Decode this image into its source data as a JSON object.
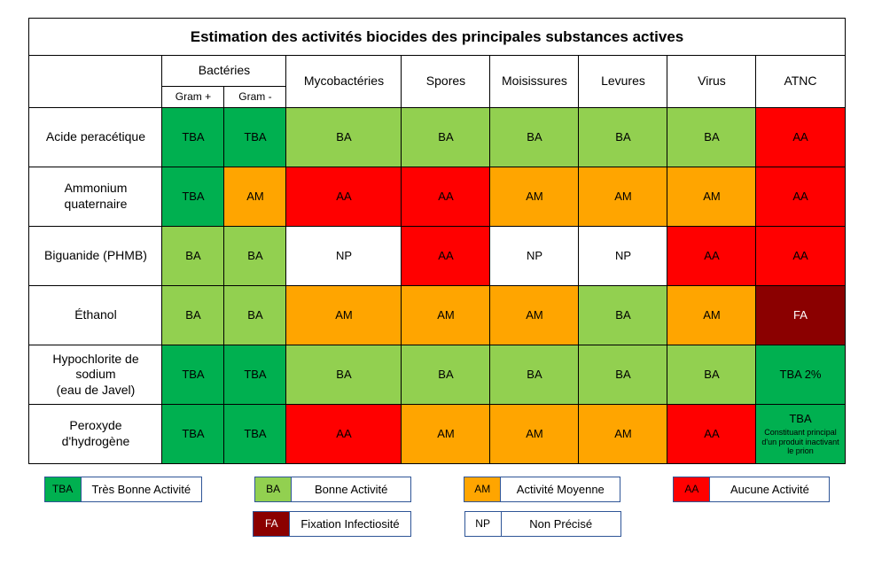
{
  "title": "Estimation des activités biocides des principales substances actives",
  "columns": {
    "bacteries": "Bactéries",
    "gram_plus": "Gram +",
    "gram_minus": "Gram -",
    "mycobacteries": "Mycobactéries",
    "spores": "Spores",
    "moisissures": "Moisissures",
    "levures": "Levures",
    "virus": "Virus",
    "atnc": "ATNC"
  },
  "codes": {
    "TBA": {
      "label": "TBA",
      "bg": "#00b050",
      "fg": "#000000"
    },
    "BA": {
      "label": "BA",
      "bg": "#92d050",
      "fg": "#000000"
    },
    "AM": {
      "label": "AM",
      "bg": "#ffa500",
      "fg": "#000000"
    },
    "AA": {
      "label": "AA",
      "bg": "#ff0000",
      "fg": "#000000"
    },
    "FA": {
      "label": "FA",
      "bg": "#8b0000",
      "fg": "#ffffff"
    },
    "NP": {
      "label": "NP",
      "bg": "#ffffff",
      "fg": "#000000"
    }
  },
  "rows": [
    {
      "name": "Acide peracétique",
      "cells": [
        "TBA",
        "TBA",
        "BA",
        "BA",
        "BA",
        "BA",
        "BA",
        "AA"
      ]
    },
    {
      "name": "Ammonium quaternaire",
      "cells": [
        "TBA",
        "AM",
        "AA",
        "AA",
        "AM",
        "AM",
        "AM",
        "AA"
      ]
    },
    {
      "name": "Biguanide (PHMB)",
      "cells": [
        "BA",
        "BA",
        "NP",
        "AA",
        "NP",
        "NP",
        "AA",
        "AA"
      ]
    },
    {
      "name": "Éthanol",
      "cells": [
        "BA",
        "BA",
        "AM",
        "AM",
        "AM",
        "BA",
        "AM",
        "FA"
      ]
    },
    {
      "name": "Hypochlorite de sodium (eau de Javel)",
      "name_html": "Hypochlorite de sodium<br>(eau de Javel)",
      "cells": [
        "TBA",
        "TBA",
        "BA",
        "BA",
        "BA",
        "BA",
        "BA",
        {
          "code": "TBA",
          "text": "TBA 2%"
        }
      ]
    },
    {
      "name": "Peroxyde d'hydrogène",
      "cells": [
        "TBA",
        "TBA",
        "AA",
        "AM",
        "AM",
        "AM",
        "AA",
        {
          "code": "TBA",
          "text": "TBA",
          "note": "Constituant principal d'un produit inactivant le prion"
        }
      ]
    }
  ],
  "legend": [
    {
      "code": "TBA",
      "text": "Très Bonne Activité"
    },
    {
      "code": "BA",
      "text": "Bonne Activité"
    },
    {
      "code": "AM",
      "text": "Activité Moyenne"
    },
    {
      "code": "AA",
      "text": "Aucune Activité"
    },
    {
      "code": "FA",
      "text": "Fixation Infectiosité"
    },
    {
      "code": "NP",
      "text": "Non Précisé"
    }
  ],
  "col_widths": {
    "row_header": 150,
    "gram": 70,
    "mycobact": 130,
    "default": 100,
    "atnc": 100
  }
}
